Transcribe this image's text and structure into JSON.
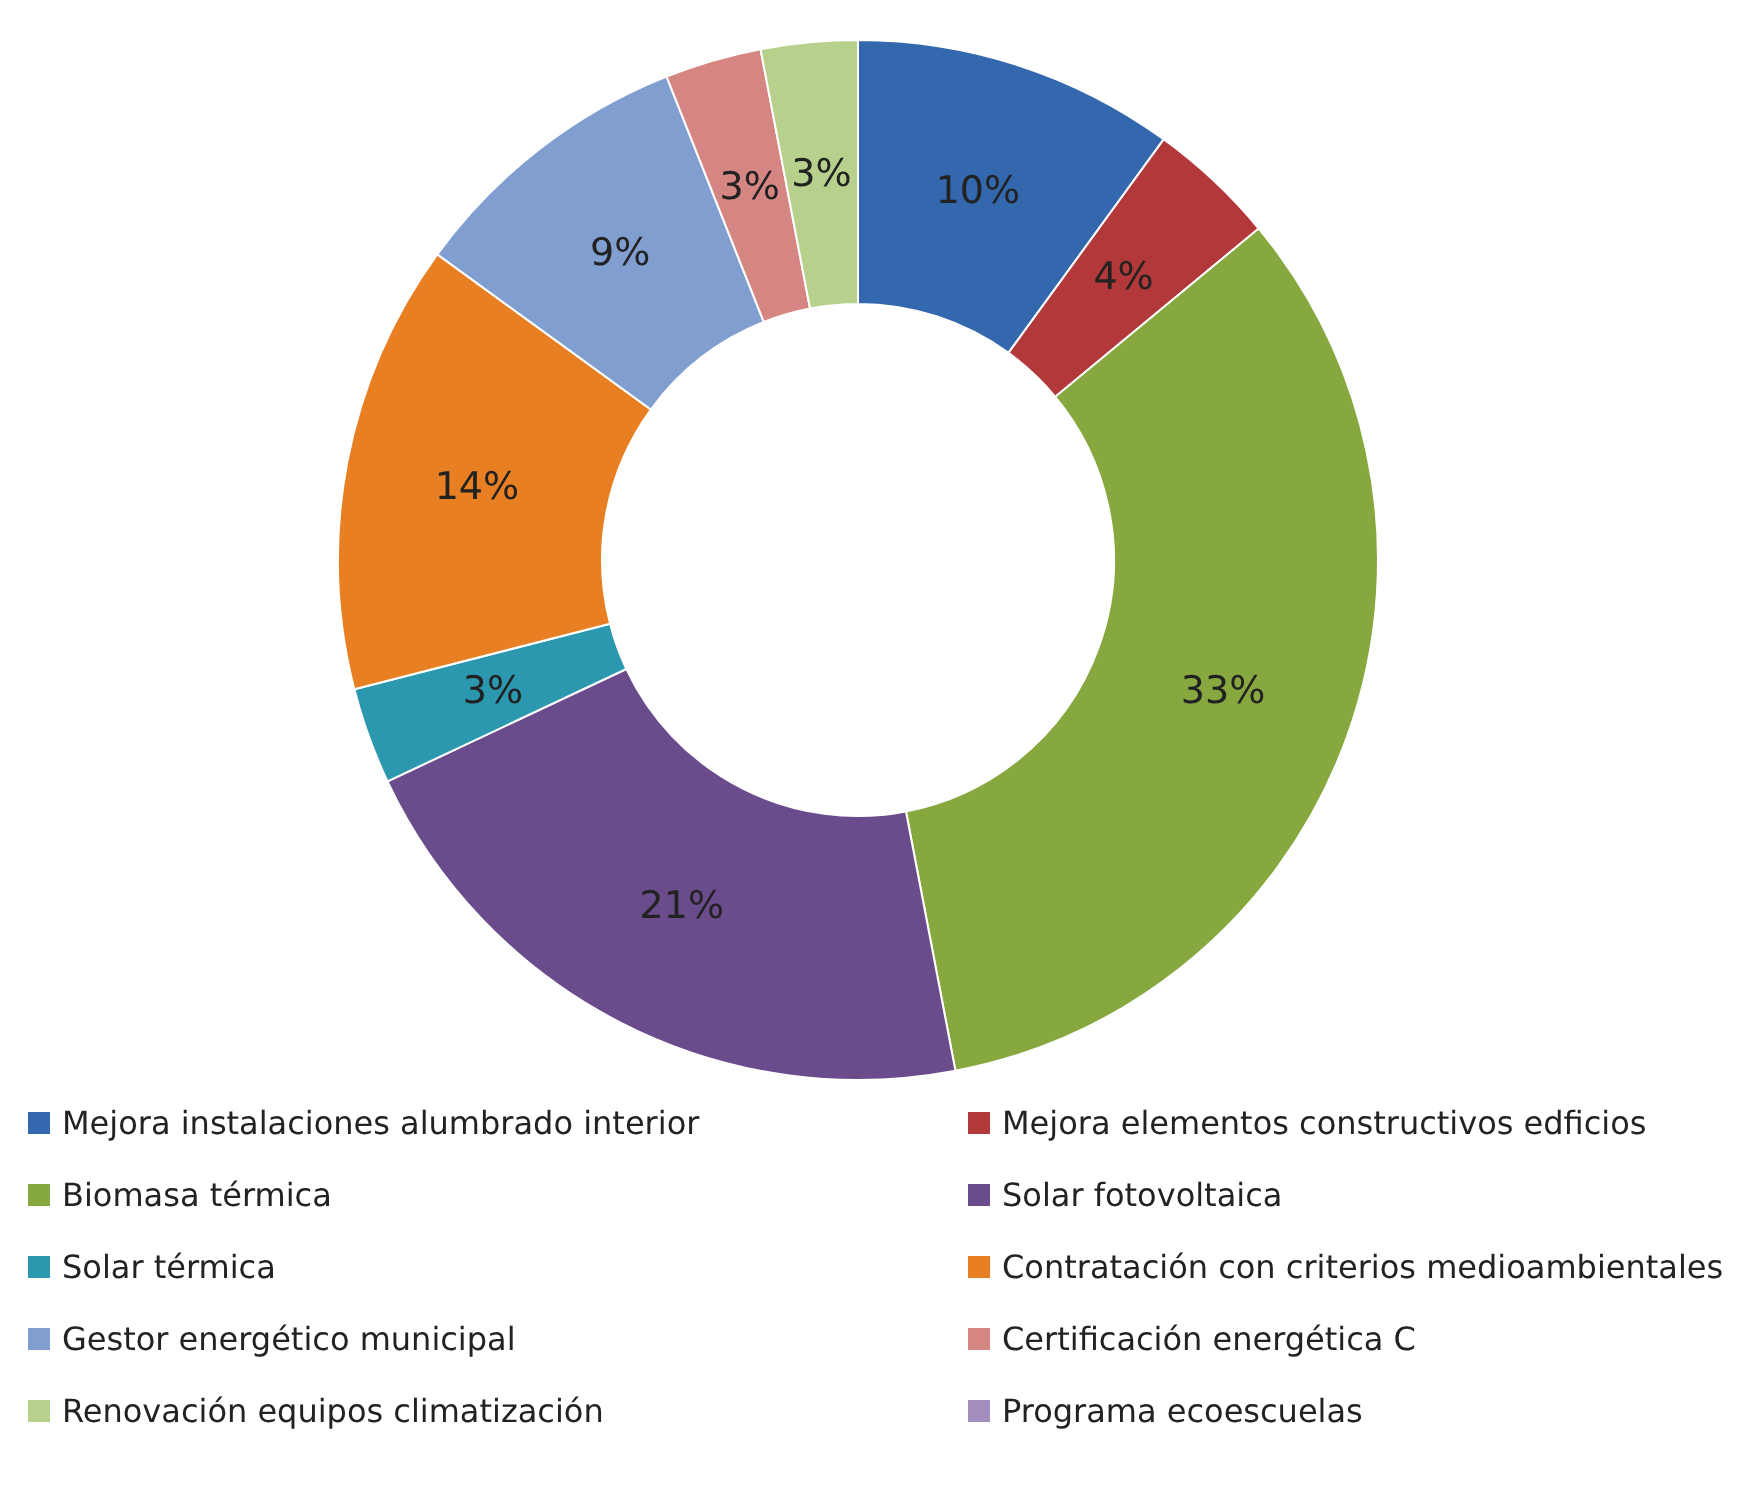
{
  "chart_data": {
    "type": "donut",
    "categories": [
      "Mejora instalaciones alumbrado interior",
      "Mejora elementos constructivos edficios",
      "Biomasa térmica",
      "Solar fotovoltaica",
      "Solar térmica",
      "Contratación con criterios medioambientales",
      "Gestor energético municipal",
      "Certificación energética C",
      "Renovación equipos climatización",
      "Programa ecoescuelas"
    ],
    "values": [
      10,
      4,
      33,
      21,
      3,
      14,
      9,
      3,
      3,
      0
    ],
    "colors": [
      "#3468ae",
      "#b3383a",
      "#86a83f",
      "#6a4b8c",
      "#2c98af",
      "#e87f23",
      "#809fd0",
      "#d58683",
      "#b7d08c",
      "#a28fbf"
    ],
    "value_labels": [
      "10%",
      "4%",
      "33%",
      "21%",
      "3%",
      "14%",
      "9%",
      "3%",
      "3%",
      null
    ],
    "legend": "bottom"
  }
}
